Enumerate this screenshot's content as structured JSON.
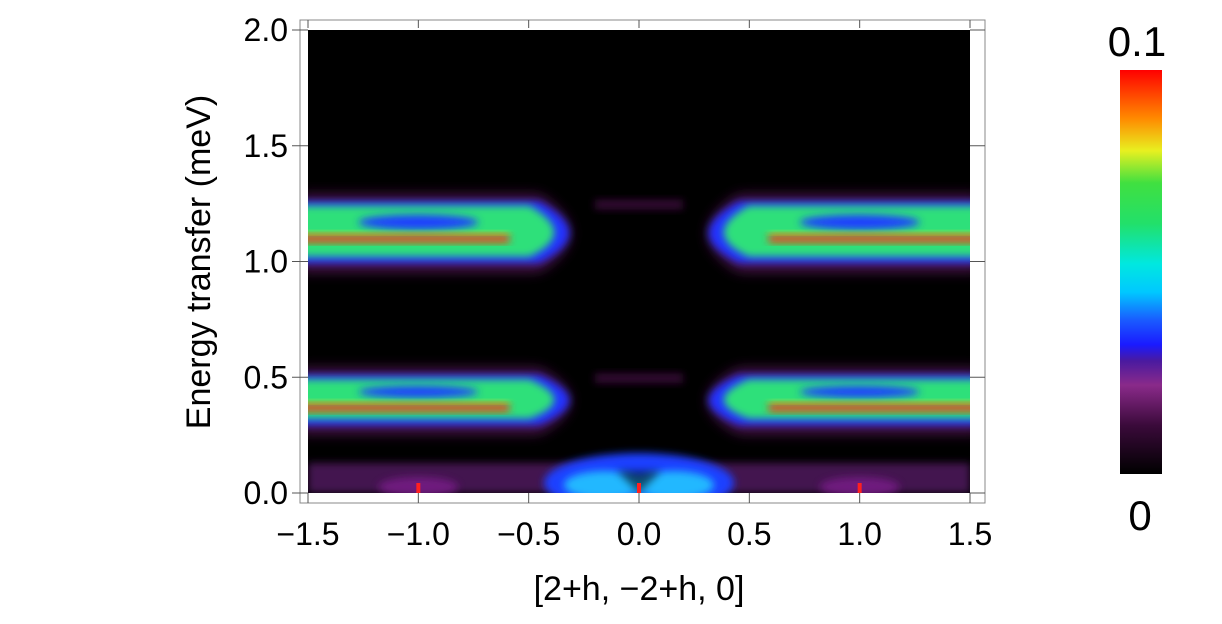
{
  "chart_data": {
    "type": "heatmap",
    "xlabel": "[2+h, −2+h, 0]",
    "ylabel": "Energy transfer (meV)",
    "xlim": [
      -1.5,
      1.5
    ],
    "ylim": [
      0.0,
      2.0
    ],
    "x_ticks": [
      -1.5,
      -1.0,
      -0.5,
      0.0,
      0.5,
      1.0,
      1.5
    ],
    "x_tick_labels": [
      "−1.5",
      "−1.0",
      "−0.5",
      "0.0",
      "0.5",
      "1.0",
      "1.5"
    ],
    "y_ticks": [
      0.0,
      0.5,
      1.0,
      1.5,
      2.0
    ],
    "y_tick_labels": [
      "0.0",
      "0.5",
      "1.0",
      "1.5",
      "2.0"
    ],
    "colorbar": {
      "min": 0,
      "max": 0.1,
      "min_label": "0",
      "max_label": "0.1",
      "colors": [
        "#000000",
        "#7a1f7a",
        "#1a1aff",
        "#00e5ff",
        "#22e06a",
        "#e8f020",
        "#ff8a00",
        "#ff0000"
      ]
    },
    "bands": [
      {
        "energy_center": 1.12,
        "energy_low": 1.02,
        "energy_high": 1.25,
        "peak_energy": 1.1,
        "gap_at_h": 0.0
      },
      {
        "energy_center": 0.4,
        "energy_low": 0.32,
        "energy_high": 0.5,
        "peak_energy": 0.37,
        "gap_at_h": 0.0
      },
      {
        "energy_center": 0.05,
        "energy_low": 0.0,
        "energy_high": 0.13,
        "peak_energy": 0.03,
        "gap_at_h": null
      }
    ],
    "bragg_markers_h": [
      -1.0,
      0.0,
      1.0
    ],
    "background_color": "#000000",
    "grid": false
  }
}
